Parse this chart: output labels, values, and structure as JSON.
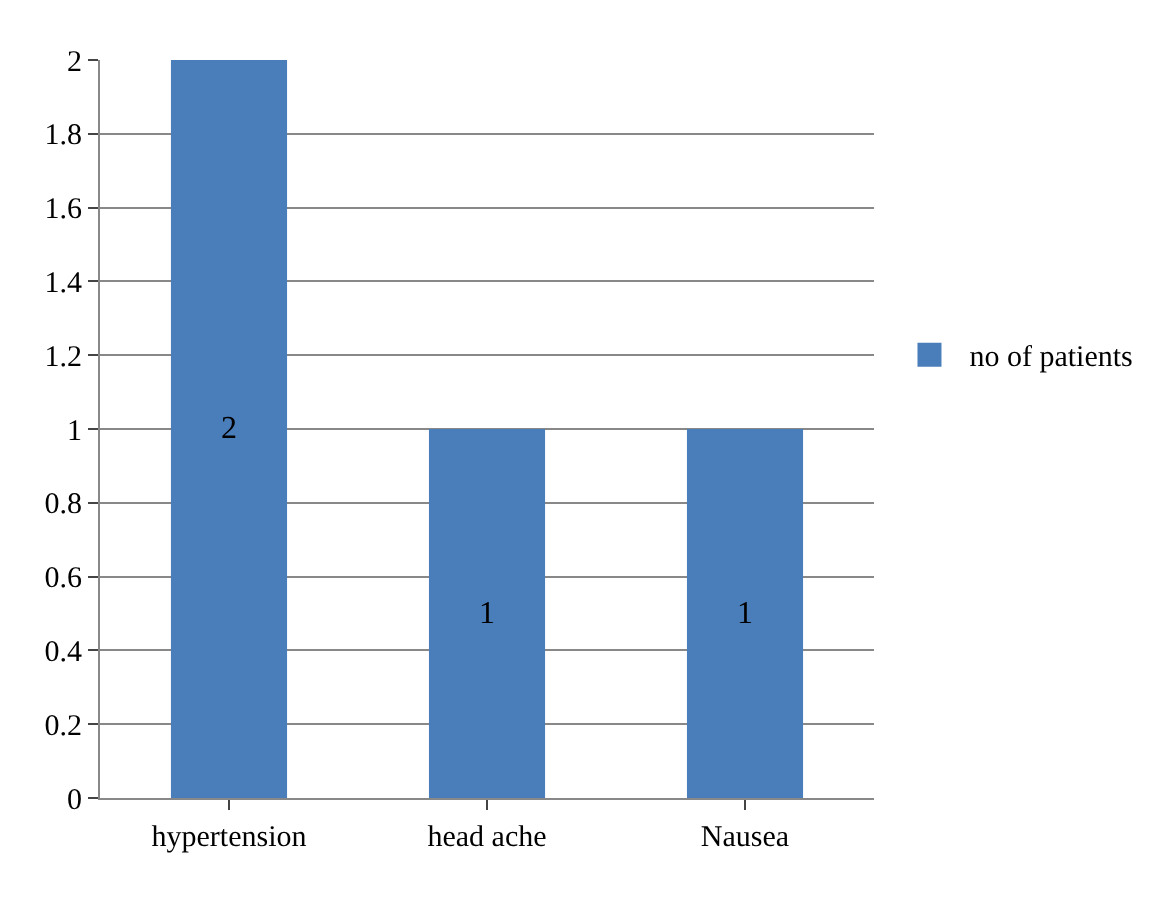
{
  "chart_data": {
    "type": "bar",
    "categories": [
      "hypertension",
      "head ache",
      "Nausea"
    ],
    "series": [
      {
        "name": "no of patients",
        "color": "#4a7ebb",
        "values": [
          2,
          1,
          1
        ]
      }
    ],
    "ylim": [
      0,
      2
    ],
    "yticks": [
      0,
      0.2,
      0.4,
      0.6,
      0.8,
      1,
      1.2,
      1.4,
      1.6,
      1.8,
      2
    ],
    "grid": "y",
    "legend": "right",
    "data_labels": true
  }
}
